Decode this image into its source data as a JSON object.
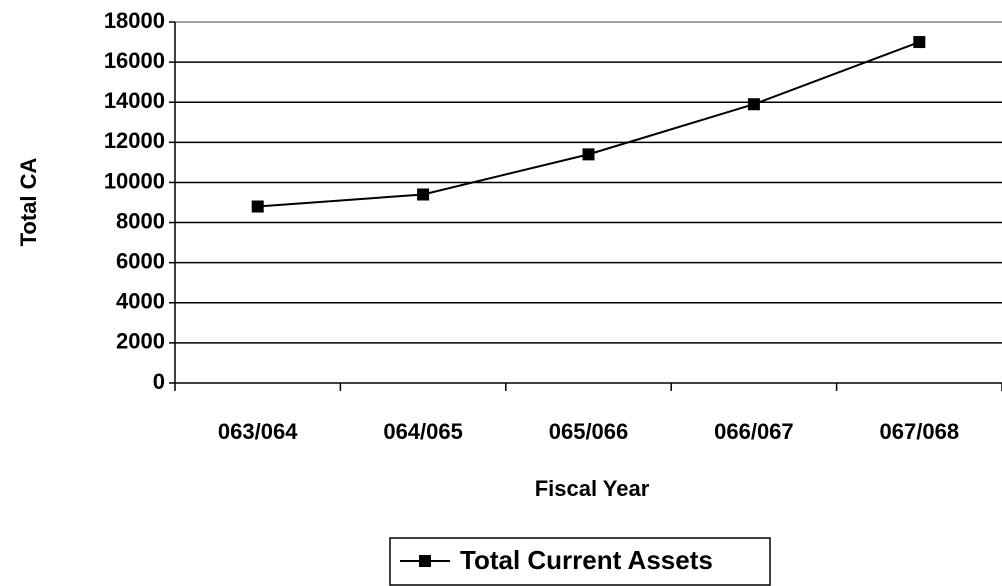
{
  "chart_data": {
    "type": "line",
    "x_label": "Fiscal Year",
    "y_label": "Total CA",
    "categories": [
      "063/064",
      "064/065",
      "065/066",
      "066/067",
      "067/068"
    ],
    "series": [
      {
        "name": "Total Current Assets",
        "color": "#000000",
        "values": [
          8800,
          9400,
          11400,
          13900,
          17000
        ]
      }
    ],
    "ylim": [
      0,
      18000
    ],
    "yticks": [
      0,
      2000,
      4000,
      6000,
      8000,
      10000,
      12000,
      14000,
      16000,
      18000
    ],
    "grid": true,
    "legend": "bottom"
  }
}
